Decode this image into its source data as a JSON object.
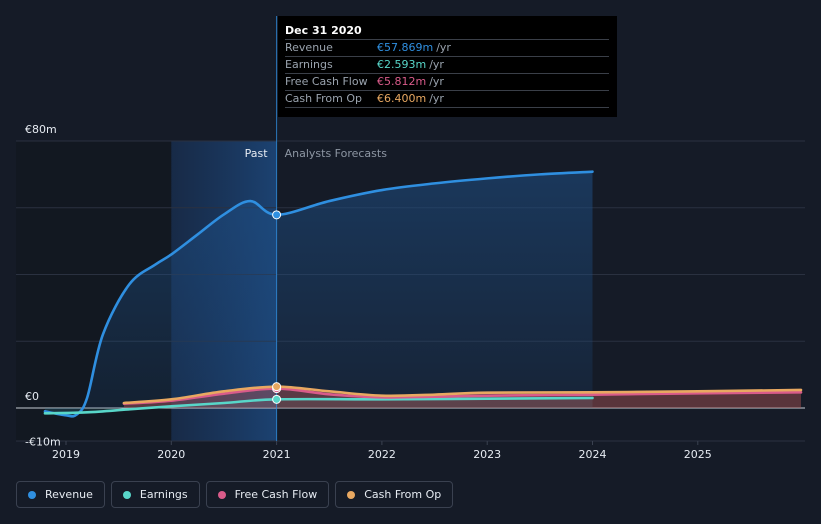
{
  "colors": {
    "revenue": "#2f8fe0",
    "earnings": "#58d6c9",
    "free_cash_flow": "#d95b8a",
    "cash_from_op": "#e8a861",
    "background": "#151b27",
    "grid": "#2a3140"
  },
  "tooltip": {
    "title": "Dec 31 2020",
    "rows": [
      {
        "label": "Revenue",
        "value": "€57.869m",
        "unit": "/yr",
        "color": "#2f8fe0"
      },
      {
        "label": "Earnings",
        "value": "€2.593m",
        "unit": "/yr",
        "color": "#58d6c9"
      },
      {
        "label": "Free Cash Flow",
        "value": "€5.812m",
        "unit": "/yr",
        "color": "#d95b8a"
      },
      {
        "label": "Cash From Op",
        "value": "€6.400m",
        "unit": "/yr",
        "color": "#e8a861"
      }
    ]
  },
  "legend": [
    {
      "label": "Revenue",
      "color": "#2f8fe0"
    },
    {
      "label": "Earnings",
      "color": "#58d6c9"
    },
    {
      "label": "Free Cash Flow",
      "color": "#d95b8a"
    },
    {
      "label": "Cash From Op",
      "color": "#e8a861"
    }
  ],
  "chart_data": {
    "type": "line",
    "y_tick_labels": [
      "€80m",
      "€0",
      "-€10m"
    ],
    "ylim": [
      -10,
      80
    ],
    "x_tick_labels": [
      "2019",
      "2020",
      "2021",
      "2022",
      "2023",
      "2024",
      "2025"
    ],
    "xlim": [
      2018.5,
      2025.98
    ],
    "region_labels": {
      "past": "Past",
      "forecast": "Analysts Forecasts"
    },
    "past_region": [
      2020,
      2021
    ],
    "divider_x": 2021.0,
    "grid": true,
    "series": [
      {
        "name": "Revenue",
        "color": "#2f8fe0",
        "x": [
          2018.8,
          2019.0,
          2019.1,
          2019.2,
          2019.35,
          2019.6,
          2019.85,
          2020.0,
          2020.25,
          2020.5,
          2020.75,
          2021.0,
          2021.5,
          2022.0,
          2022.5,
          2023.0,
          2023.5,
          2024.0
        ],
        "y": [
          -1,
          -2.2,
          -2,
          3,
          22,
          37,
          43,
          46,
          52,
          58,
          62,
          57.869,
          62,
          65.3,
          67.3,
          68.8,
          70,
          70.8
        ]
      },
      {
        "name": "Earnings",
        "color": "#58d6c9",
        "x": [
          2018.8,
          2019.2,
          2019.6,
          2020.0,
          2020.5,
          2021.0,
          2022.0,
          2023.0,
          2024.0
        ],
        "y": [
          -1.6,
          -1.3,
          -0.4,
          0.5,
          1.5,
          2.593,
          2.6,
          2.8,
          3.0
        ]
      },
      {
        "name": "Free Cash Flow",
        "color": "#d95b8a",
        "x": [
          2019.55,
          2020.0,
          2020.5,
          2021.0,
          2021.5,
          2022.0,
          2022.5,
          2023.0,
          2024.0,
          2025.0,
          2025.98
        ],
        "y": [
          1.3,
          2.2,
          4.3,
          5.812,
          4.1,
          3.2,
          3.4,
          3.7,
          4.0,
          4.4,
          4.7
        ]
      },
      {
        "name": "Cash From Op",
        "color": "#e8a861",
        "x": [
          2019.55,
          2020.0,
          2020.5,
          2021.0,
          2021.5,
          2022.0,
          2022.5,
          2023.0,
          2024.0,
          2025.0,
          2025.98
        ],
        "y": [
          1.5,
          2.6,
          5.0,
          6.4,
          5.0,
          3.7,
          4.0,
          4.6,
          4.7,
          5.0,
          5.4
        ]
      }
    ]
  }
}
